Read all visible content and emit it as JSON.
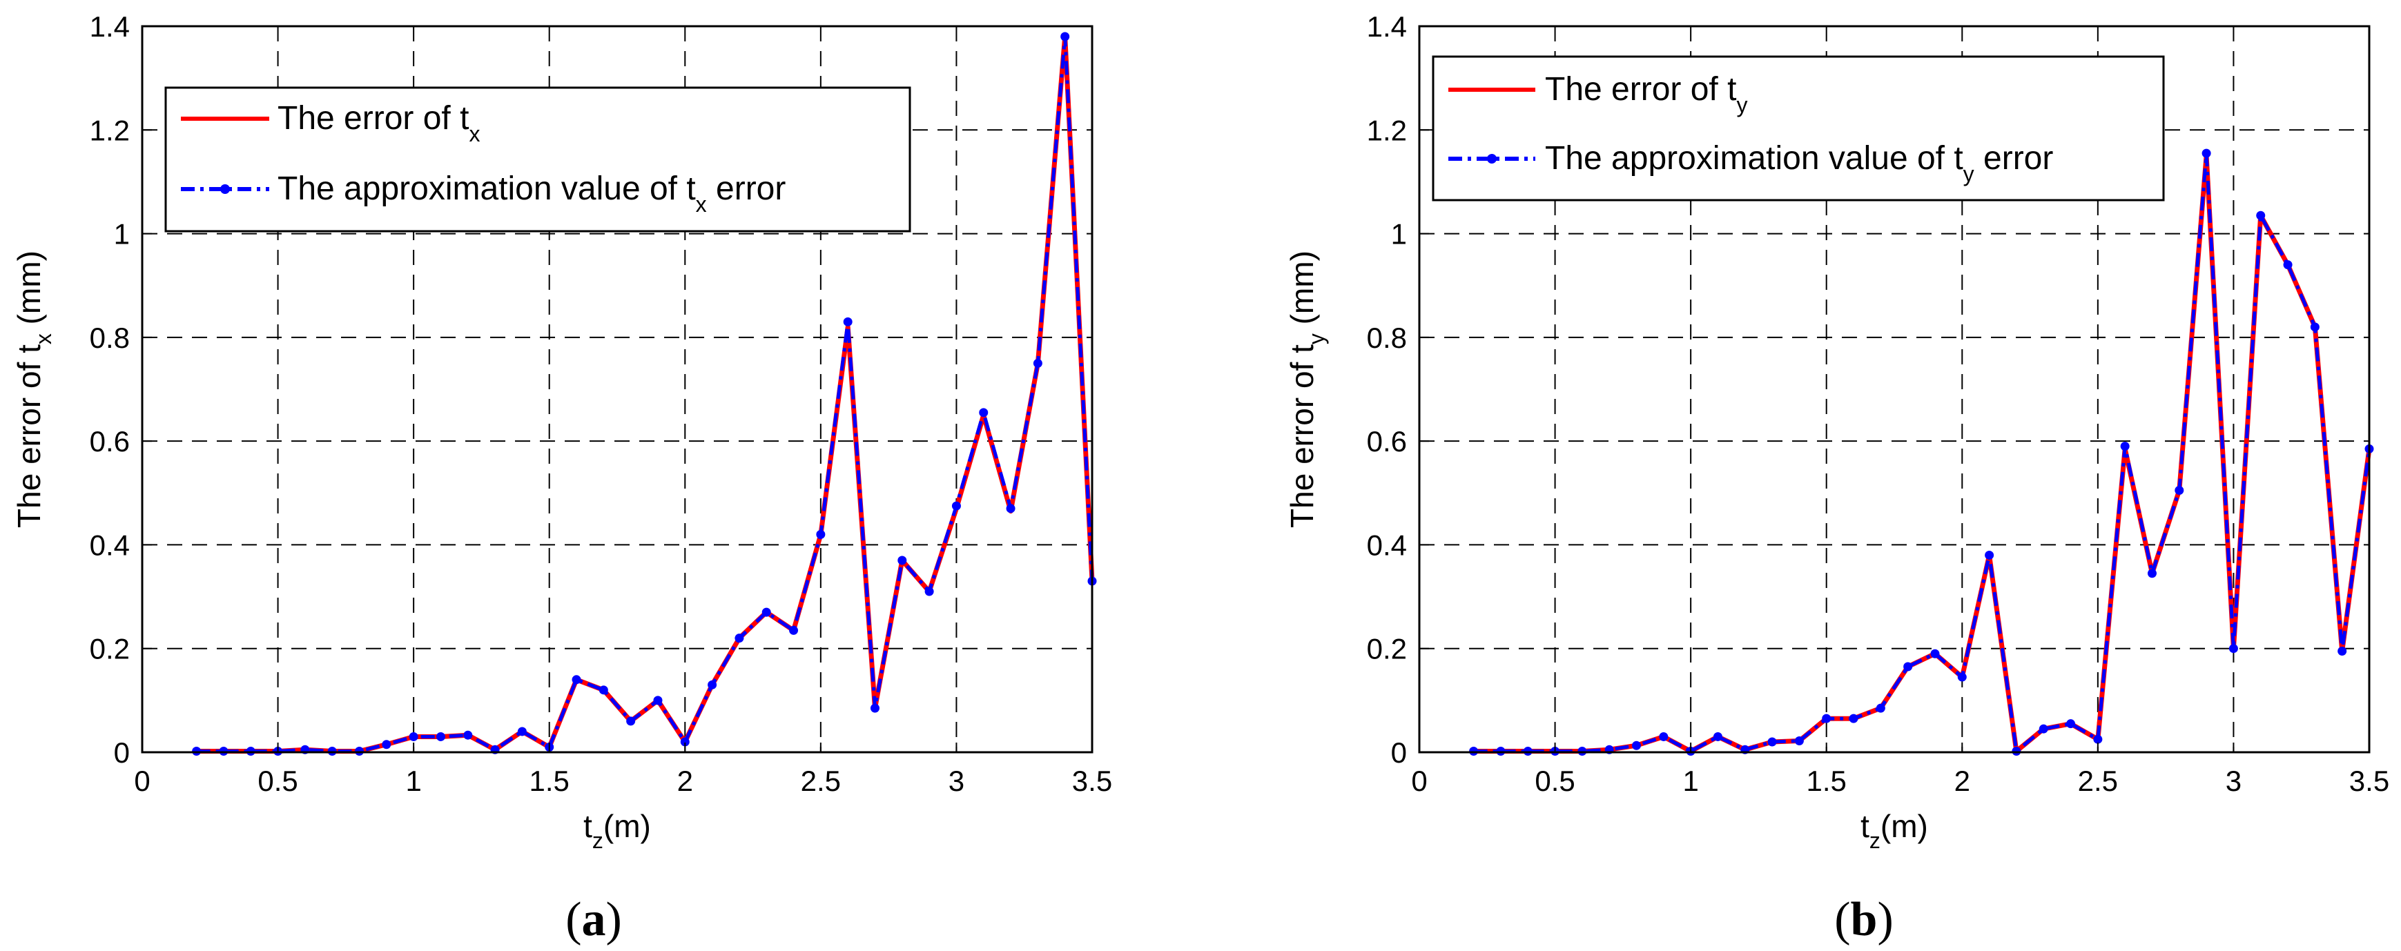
{
  "chart_data": [
    {
      "type": "line",
      "panel_label": "a",
      "xlabel": {
        "main": "t",
        "sub": "z",
        "rest": "(m)"
      },
      "ylabel": {
        "main": "The error of  t",
        "sub": "x",
        "rest": " (mm)"
      },
      "xlim": [
        0,
        3.5
      ],
      "ylim": [
        0,
        1.4
      ],
      "xticks": [
        "0",
        "0.5",
        "1",
        "1.5",
        "2",
        "2.5",
        "3",
        "3.5"
      ],
      "yticks": [
        "0",
        "0.2",
        "0.4",
        "0.6",
        "0.8",
        "1",
        "1.2",
        "1.4"
      ],
      "grid": true,
      "legend_position": "top-left",
      "x": [
        0.2,
        0.3,
        0.4,
        0.5,
        0.6,
        0.7,
        0.8,
        0.9,
        1.0,
        1.1,
        1.2,
        1.3,
        1.4,
        1.5,
        1.6,
        1.7,
        1.8,
        1.9,
        2.0,
        2.1,
        2.2,
        2.3,
        2.4,
        2.5,
        2.6,
        2.7,
        2.8,
        2.9,
        3.0,
        3.1,
        3.2,
        3.3,
        3.4,
        3.5
      ],
      "series": [
        {
          "name": "The error of t",
          "name_sub": "x",
          "name_rest": "",
          "color": "#ff0000",
          "style": "solid",
          "values": [
            0.002,
            0.002,
            0.002,
            0.002,
            0.005,
            0.002,
            0.002,
            0.015,
            0.03,
            0.03,
            0.033,
            0.005,
            0.04,
            0.01,
            0.14,
            0.12,
            0.06,
            0.1,
            0.02,
            0.13,
            0.22,
            0.27,
            0.235,
            0.42,
            0.82,
            0.085,
            0.37,
            0.31,
            0.47,
            0.65,
            0.465,
            0.75,
            1.38,
            0.33
          ]
        },
        {
          "name": "The approximation value of  t",
          "name_sub": "x",
          "name_rest": " error",
          "color": "#0000ff",
          "style": "dashdot",
          "marker": "dot",
          "values": [
            0.002,
            0.002,
            0.002,
            0.002,
            0.005,
            0.002,
            0.002,
            0.015,
            0.03,
            0.03,
            0.033,
            0.005,
            0.04,
            0.01,
            0.14,
            0.12,
            0.06,
            0.1,
            0.02,
            0.13,
            0.22,
            0.27,
            0.235,
            0.42,
            0.83,
            0.085,
            0.37,
            0.31,
            0.475,
            0.655,
            0.47,
            0.75,
            1.38,
            0.33
          ]
        }
      ]
    },
    {
      "type": "line",
      "panel_label": "b",
      "xlabel": {
        "main": "t",
        "sub": "z",
        "rest": "(m)"
      },
      "ylabel": {
        "main": "The error of  t",
        "sub": "y",
        "rest": " (mm)"
      },
      "xlim": [
        0,
        3.5
      ],
      "ylim": [
        0,
        1.4
      ],
      "xticks": [
        "0",
        "0.5",
        "1",
        "1.5",
        "2",
        "2.5",
        "3",
        "3.5"
      ],
      "yticks": [
        "0",
        "0.2",
        "0.4",
        "0.6",
        "0.8",
        "1",
        "1.2",
        "1.4"
      ],
      "grid": true,
      "legend_position": "top-left",
      "x": [
        0.2,
        0.3,
        0.4,
        0.5,
        0.6,
        0.7,
        0.8,
        0.9,
        1.0,
        1.1,
        1.2,
        1.3,
        1.4,
        1.5,
        1.6,
        1.7,
        1.8,
        1.9,
        2.0,
        2.1,
        2.2,
        2.3,
        2.4,
        2.5,
        2.6,
        2.7,
        2.8,
        2.9,
        3.0,
        3.1,
        3.2,
        3.3,
        3.4,
        3.5
      ],
      "series": [
        {
          "name": "The error of t",
          "name_sub": "y",
          "name_rest": "",
          "color": "#ff0000",
          "style": "solid",
          "values": [
            0.002,
            0.002,
            0.002,
            0.002,
            0.002,
            0.005,
            0.013,
            0.03,
            0.002,
            0.03,
            0.005,
            0.02,
            0.022,
            0.065,
            0.065,
            0.085,
            0.165,
            0.19,
            0.145,
            0.38,
            0.002,
            0.045,
            0.055,
            0.025,
            0.585,
            0.345,
            0.505,
            1.15,
            0.2,
            1.035,
            0.94,
            0.82,
            0.195,
            0.585
          ]
        },
        {
          "name": "The approximation value of t",
          "name_sub": "y",
          "name_rest": " error",
          "color": "#0000ff",
          "style": "dashdot",
          "marker": "dot",
          "values": [
            0.002,
            0.002,
            0.002,
            0.002,
            0.002,
            0.005,
            0.013,
            0.03,
            0.002,
            0.03,
            0.005,
            0.02,
            0.022,
            0.065,
            0.065,
            0.085,
            0.165,
            0.19,
            0.145,
            0.38,
            0.002,
            0.045,
            0.055,
            0.025,
            0.59,
            0.345,
            0.505,
            1.155,
            0.2,
            1.035,
            0.94,
            0.82,
            0.195,
            0.585
          ]
        }
      ]
    }
  ]
}
